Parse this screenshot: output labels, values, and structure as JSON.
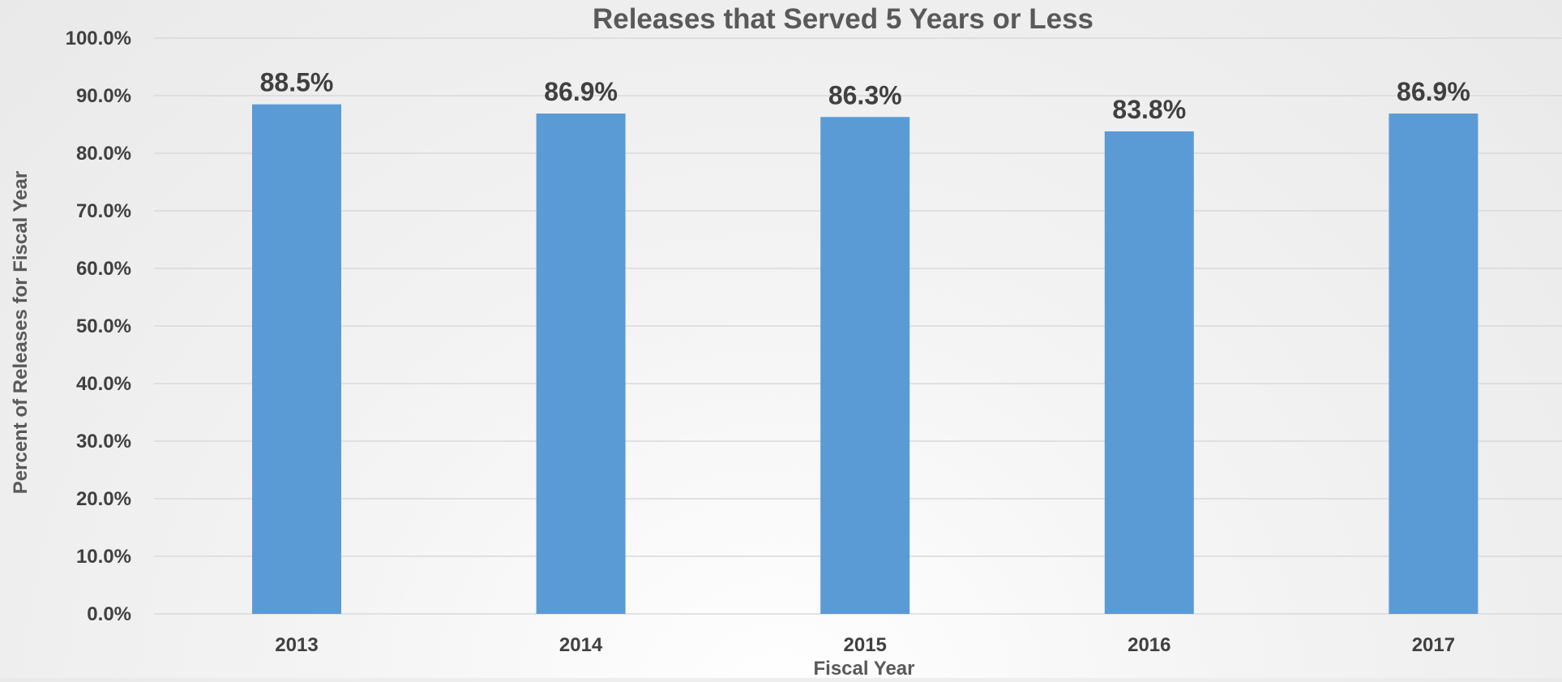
{
  "chart_data": {
    "type": "bar",
    "title": "Releases that Served 5 Years or Less",
    "xlabel": "Fiscal Year",
    "ylabel": "Percent of Releases for Fiscal Year",
    "categories": [
      "2013",
      "2014",
      "2015",
      "2016",
      "2017"
    ],
    "values": [
      88.5,
      86.9,
      86.3,
      83.8,
      86.9
    ],
    "data_labels": [
      "88.5%",
      "86.9%",
      "86.3%",
      "83.8%",
      "86.9%"
    ],
    "ylim": [
      0,
      100
    ],
    "yticks": [
      0,
      10,
      20,
      30,
      40,
      50,
      60,
      70,
      80,
      90,
      100
    ],
    "ytick_labels": [
      "0.0%",
      "10.0%",
      "20.0%",
      "30.0%",
      "40.0%",
      "50.0%",
      "60.0%",
      "70.0%",
      "80.0%",
      "90.0%",
      "100.0%"
    ],
    "grid": true,
    "legend": "none",
    "colors": {
      "bar": "#5b9bd5",
      "text": "#404040",
      "grid": "#d9d9d9"
    }
  }
}
